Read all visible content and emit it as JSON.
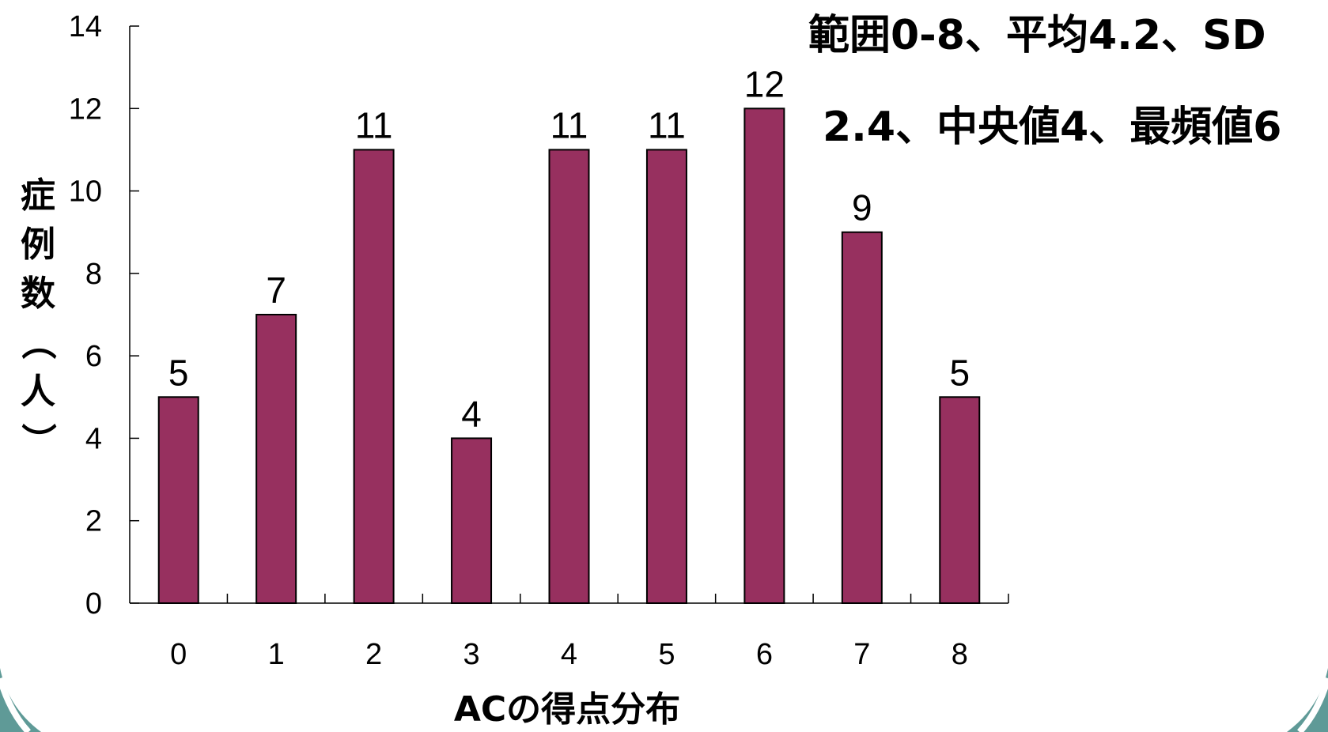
{
  "chart_data": {
    "type": "bar",
    "categories": [
      "0",
      "1",
      "2",
      "3",
      "4",
      "5",
      "6",
      "7",
      "8"
    ],
    "values": [
      5,
      7,
      11,
      4,
      11,
      11,
      12,
      9,
      5
    ],
    "data_labels": [
      "5",
      "7",
      "11",
      "4",
      "11",
      "11",
      "12",
      "9",
      "5"
    ],
    "xlabel": "ACの得点分布",
    "ylabel": "症例数（人）",
    "ylim": [
      0,
      14
    ],
    "yticks": [
      0,
      2,
      4,
      6,
      8,
      10,
      12,
      14
    ],
    "grid": false,
    "legend": "none",
    "bar_color": "#97305f",
    "annotation_lines": [
      "範囲0-8、平均4.2、SD",
      "2.4、中央値4、最頻値6"
    ]
  },
  "colors": {
    "bar": "#97305f",
    "bar_outline": "#000000",
    "decor_arc": "#5f9a97"
  }
}
